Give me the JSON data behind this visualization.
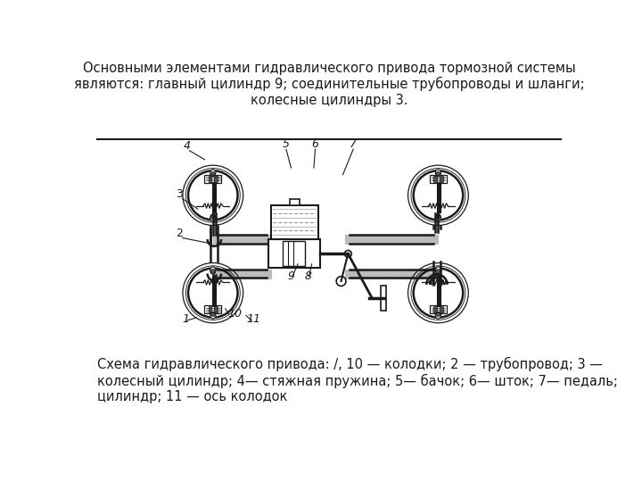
{
  "title_text": "Основными элементами гидравлического привода тормозной системы\nявляются: главный цилиндр 9; соединительные трубопроводы и шланги;\nколесные цилиндры 3.",
  "caption_text": "Схема гидравлического привода: /, 10 — колодки; 2 — трубопровод; 3 —\nколесный цилиндр; 4— стяжная пружина; 5— бачок; 6— шток; 7— педаль;\nцилиндр; 11 — ось колодок",
  "bg_color": "#ffffff",
  "line_color": "#1a1a1a",
  "title_fontsize": 10.5,
  "caption_fontsize": 10.5
}
